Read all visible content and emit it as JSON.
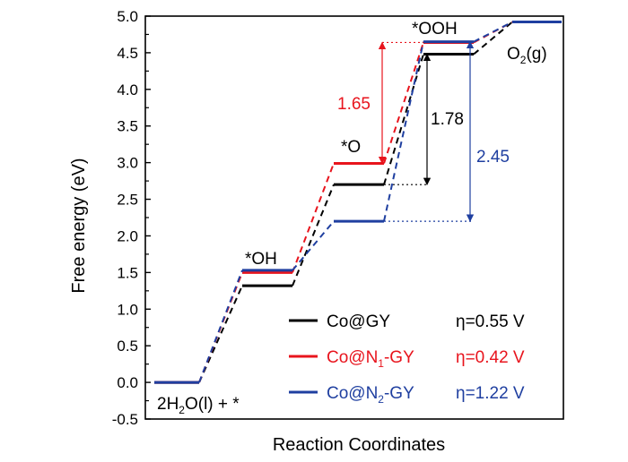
{
  "chart_data": {
    "type": "line",
    "title": "",
    "xlabel": "Reaction Coordinates",
    "ylabel": "Free energy (eV)",
    "ylim": [
      -0.5,
      5.0
    ],
    "yticks": [
      -0.5,
      0.0,
      0.5,
      1.0,
      1.5,
      2.0,
      2.5,
      3.0,
      3.5,
      4.0,
      4.5,
      5.0
    ],
    "ytick_labels": [
      "-0.5",
      "0.0",
      "0.5",
      "1.0",
      "1.5",
      "2.0",
      "2.5",
      "3.0",
      "3.5",
      "4.0",
      "4.5",
      "5.0"
    ],
    "steps": [
      "2H2O(l) + *",
      "*OH",
      "*O",
      "*OOH",
      "O2(g)"
    ],
    "step_labels": [
      {
        "base": "2H",
        "sub": "2",
        "rest": "O(l) + *"
      },
      {
        "base": "*OH",
        "sub": "",
        "rest": ""
      },
      {
        "base": "*O",
        "sub": "",
        "rest": ""
      },
      {
        "base": "*OOH",
        "sub": "",
        "rest": ""
      },
      {
        "base": "O",
        "sub": "2",
        "rest": "(g)"
      }
    ],
    "series": [
      {
        "name": "Co@GY",
        "legend": {
          "base": "Co@GY",
          "sub": "",
          "rest": ""
        },
        "overpotential": "η=0.55 V",
        "color": "#000000",
        "values": [
          0.0,
          1.32,
          2.7,
          4.48,
          4.92
        ]
      },
      {
        "name": "Co@N1-GY",
        "legend": {
          "base": "Co@N",
          "sub": "1",
          "rest": "-GY"
        },
        "overpotential": "η=0.42 V",
        "color": "#e8141d",
        "values": [
          0.0,
          1.5,
          2.99,
          4.64,
          4.92
        ]
      },
      {
        "name": "Co@N2-GY",
        "legend": {
          "base": "Co@N",
          "sub": "2",
          "rest": "-GY"
        },
        "overpotential": "η=1.22 V",
        "color": "#1f3fa0",
        "values": [
          0.0,
          1.53,
          2.2,
          4.65,
          4.92
        ]
      }
    ],
    "annotations": [
      {
        "text": "1.65",
        "color": "#e8141d",
        "series": "Co@N1-GY",
        "from": 2.99,
        "to": 4.64
      },
      {
        "text": "1.78",
        "color": "#000000",
        "series": "Co@GY",
        "from": 2.7,
        "to": 4.48
      },
      {
        "text": "2.45",
        "color": "#1f3fa0",
        "series": "Co@N2-GY",
        "from": 2.2,
        "to": 4.65
      }
    ],
    "grid": false,
    "legend_position": "bottom-right"
  }
}
